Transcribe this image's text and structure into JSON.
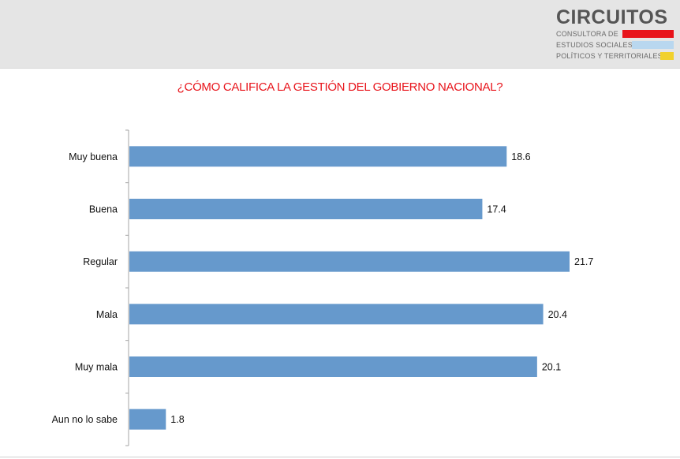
{
  "header": {
    "logo_name": "CIRCUITOS",
    "logo_line1": "CONSULTORA DE",
    "logo_line2": "ESTUDIOS SOCIALES,",
    "logo_line3": "POLÍTICOS Y TERRITORIALES",
    "logo_colors": [
      "#e8141b",
      "#b9d7ef",
      "#f1d12c"
    ]
  },
  "colors": {
    "bar": "#6699cc",
    "title": "#e8141b"
  },
  "chart_data": {
    "type": "bar",
    "orientation": "horizontal",
    "title": "¿CÓMO CALIFICA LA GESTIÓN DEL GOBIERNO NACIONAL?",
    "categories": [
      "Muy buena",
      "Buena",
      "Regular",
      "Mala",
      "Muy mala",
      "Aun no lo sabe"
    ],
    "values": [
      18.6,
      17.4,
      21.7,
      20.4,
      20.1,
      1.8
    ],
    "value_labels": [
      "18.6",
      "17.4",
      "21.7",
      "20.4",
      "20.1",
      "1.8"
    ],
    "xlim": [
      0,
      21.7
    ],
    "grid": false,
    "legend": "none"
  }
}
